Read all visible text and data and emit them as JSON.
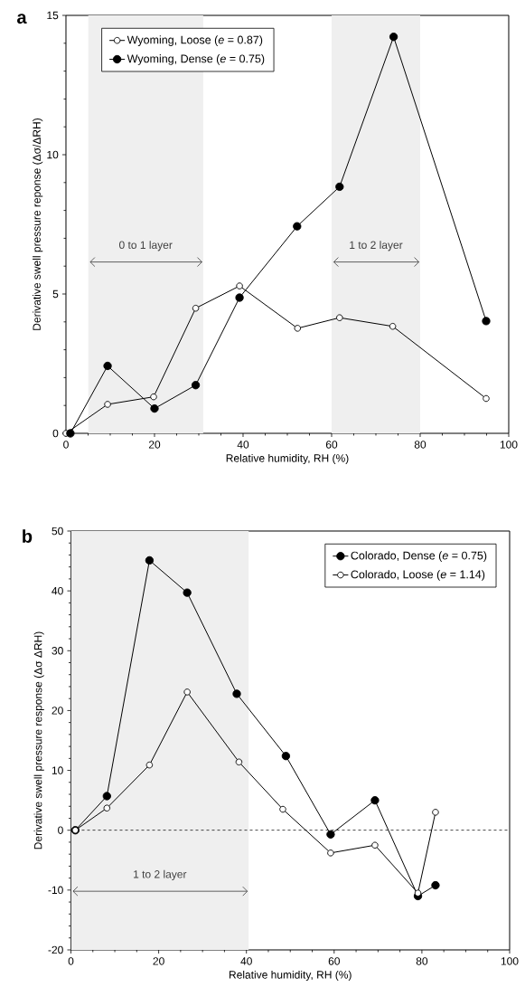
{
  "chart_data": [
    {
      "type": "line",
      "title": "a",
      "xlabel": "Relative humidity, RH (%)",
      "ylabel": "Derivative swell pressure reponse (Δσ/ΔRH)",
      "xlim": [
        0,
        100
      ],
      "ylim": [
        0,
        15
      ],
      "xticks": [
        0,
        20,
        40,
        60,
        80,
        100
      ],
      "yticks": [
        0,
        5,
        10,
        15
      ],
      "legend": "top left",
      "marker": "circle",
      "grid": false,
      "series": [
        {
          "name": "Wyoming, Loose (*e* = 0.87)",
          "color": "#000000",
          "marker": "circle-open",
          "x": [
            0,
            9.4,
            19.8,
            29.3,
            39.2,
            52.3,
            61.8,
            73.8,
            94.9
          ],
          "values": [
            0,
            1.04,
            1.31,
            4.49,
            5.29,
            3.77,
            4.15,
            3.84,
            1.25
          ]
        },
        {
          "name": "Wyoming, Dense (*e* = 0.75)",
          "color": "#000000",
          "x": [
            1,
            9.4,
            20,
            29.3,
            39.2,
            52.2,
            61.8,
            74,
            94.9
          ],
          "values": [
            0,
            2.42,
            0.89,
            1.73,
            4.87,
            7.43,
            8.85,
            14.23,
            4.03
          ]
        }
      ],
      "bands": [
        {
          "axis": "x",
          "from": 5,
          "to": 31,
          "color": "#efefef",
          "label": "0 to 1 layer"
        },
        {
          "axis": "x",
          "from": 60,
          "to": 80,
          "color": "#efefef",
          "label": "1 to 2 layer"
        }
      ]
    },
    {
      "type": "line",
      "title": "b",
      "xlabel": "Relative humidity, RH (%)",
      "ylabel": "Derivative swell pressure response  (Δσ ΔRH)",
      "xlim": [
        0,
        100
      ],
      "ylim": [
        -20,
        50
      ],
      "xticks": [
        0,
        20,
        40,
        60,
        80,
        100
      ],
      "yticks": [
        -20,
        -10,
        0,
        10,
        20,
        30,
        40,
        50
      ],
      "legend": "top right",
      "marker": "circle",
      "grid": false,
      "series": [
        {
          "name": "Colorado, Dense (*e* = 0.75)",
          "color": "#000000",
          "x": [
            1,
            8.2,
            17.9,
            26.5,
            37.8,
            49,
            59.2,
            69.3,
            79.1,
            83.1
          ],
          "values": [
            0,
            5.7,
            45.1,
            39.7,
            22.8,
            12.4,
            -0.7,
            5,
            -11,
            -9.2
          ]
        },
        {
          "name": "Colorado, Loose (*e* = 1.14)",
          "color": "#000000",
          "marker": "circle-open",
          "x": [
            1,
            8.2,
            17.9,
            26.5,
            38.3,
            48.3,
            59.2,
            69.3,
            79.1,
            83.1
          ],
          "values": [
            0,
            3.7,
            10.9,
            23.1,
            11.4,
            3.5,
            -3.8,
            -2.5,
            -10.5,
            3
          ]
        }
      ],
      "bands": [
        {
          "axis": "x",
          "from": 0,
          "to": 40.5,
          "color": "#efefef",
          "label": "1 to 2 layer"
        }
      ],
      "ref_lines": [
        {
          "axis": "y",
          "value": 0,
          "color": "#000000",
          "line_style": "dashed"
        }
      ]
    }
  ]
}
